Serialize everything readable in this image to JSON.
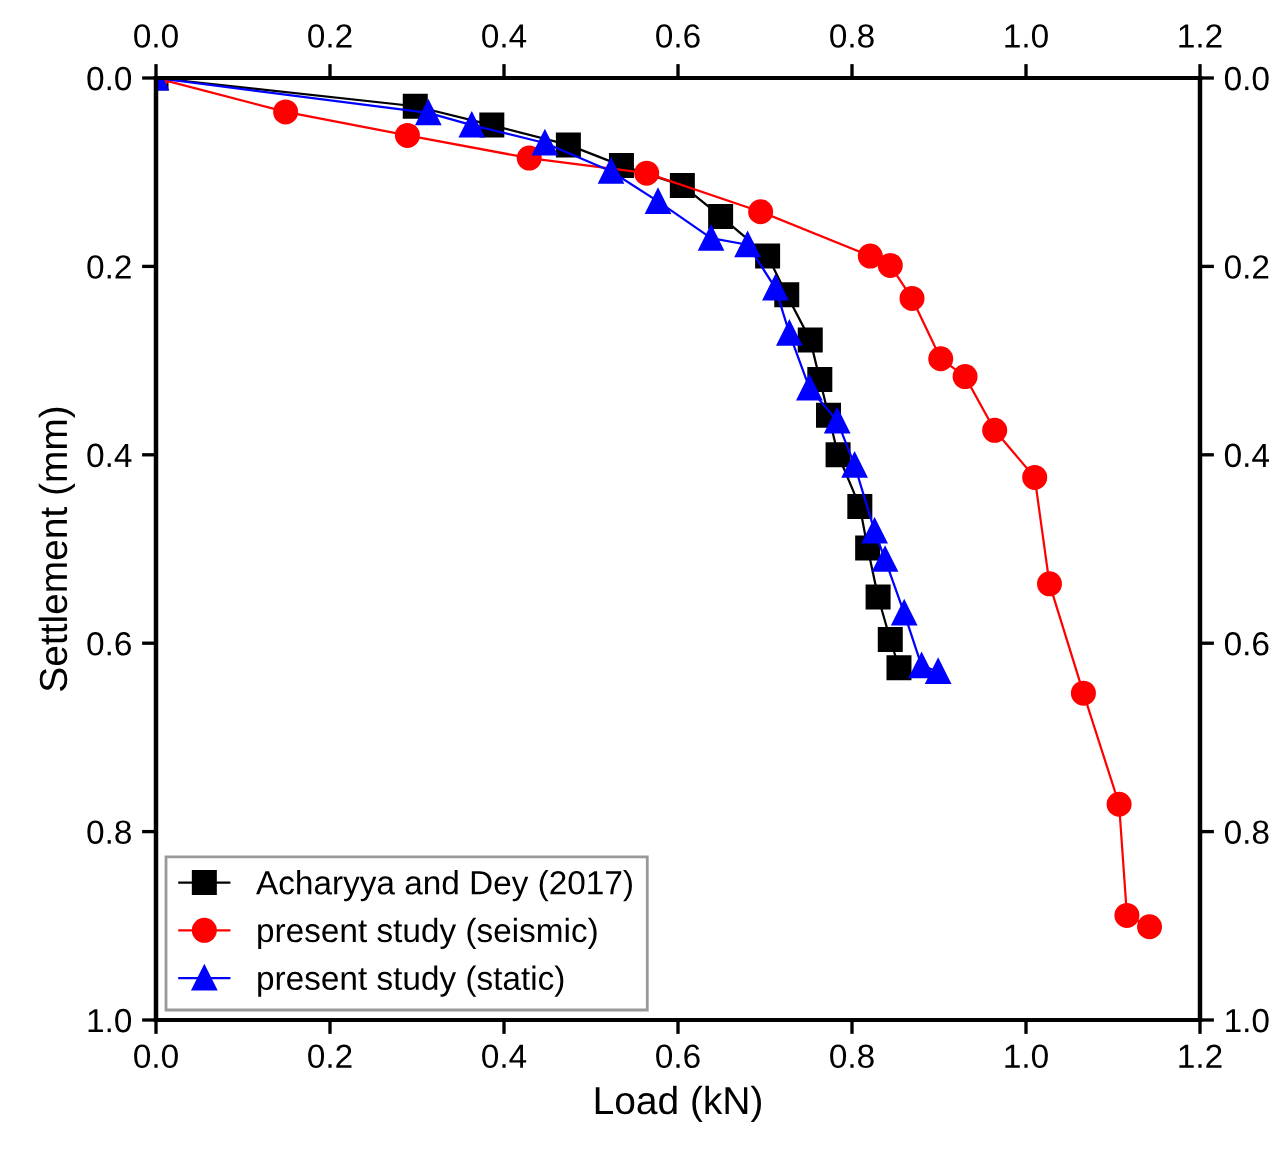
{
  "chart_data": {
    "type": "line",
    "xlabel": "Load (kN)",
    "ylabel": "Settlement (mm)",
    "legend": "bottom left",
    "grid": false,
    "line_style": "solid",
    "xlim": [
      0,
      1.2
    ],
    "ylim": [
      1.0,
      0.0
    ],
    "x2lim": [
      0,
      1.2
    ],
    "y2lim": [
      1.0,
      0.0
    ],
    "xticks": [
      {
        "value": 0,
        "label": "0.0"
      },
      {
        "value": 0.2,
        "label": "0.2"
      },
      {
        "value": 0.4,
        "label": "0.4"
      },
      {
        "value": 0.6,
        "label": "0.6"
      },
      {
        "value": 0.8,
        "label": "0.8"
      },
      {
        "value": 1.0,
        "label": "1.0"
      },
      {
        "value": 1.2,
        "label": "1.2"
      }
    ],
    "x2ticks": [
      {
        "value": 0,
        "label": "0.0"
      },
      {
        "value": 0.2,
        "label": "0.2"
      },
      {
        "value": 0.4,
        "label": "0.4"
      },
      {
        "value": 0.6,
        "label": "0.6"
      },
      {
        "value": 0.8,
        "label": "0.8"
      },
      {
        "value": 1.0,
        "label": "1.0"
      },
      {
        "value": 1.2,
        "label": "1.2"
      }
    ],
    "yticks": [
      {
        "value": 0,
        "label": "0.0"
      },
      {
        "value": 0.2,
        "label": "0.2"
      },
      {
        "value": 0.4,
        "label": "0.4"
      },
      {
        "value": 0.6,
        "label": "0.6"
      },
      {
        "value": 0.8,
        "label": "0.8"
      },
      {
        "value": 1.0,
        "label": "1.0"
      }
    ],
    "y2ticks": [
      {
        "value": 0,
        "label": "0.0"
      },
      {
        "value": 0.2,
        "label": "0.2"
      },
      {
        "value": 0.4,
        "label": "0.4"
      },
      {
        "value": 0.6,
        "label": "0.6"
      },
      {
        "value": 0.8,
        "label": "0.8"
      },
      {
        "value": 1.0,
        "label": "1.0"
      }
    ],
    "series": [
      {
        "name": "Acharyya and Dey (2017)",
        "color": "#000000",
        "marker": "square",
        "x": [
          0,
          0.298,
          0.386,
          0.474,
          0.535,
          0.605,
          0.649,
          0.703,
          0.725,
          0.752,
          0.763,
          0.773,
          0.784,
          0.809,
          0.818,
          0.83,
          0.844,
          0.854
        ],
        "values": [
          0,
          0.03,
          0.05,
          0.071,
          0.093,
          0.114,
          0.147,
          0.189,
          0.23,
          0.278,
          0.32,
          0.358,
          0.4,
          0.455,
          0.499,
          0.551,
          0.596,
          0.626
        ]
      },
      {
        "name": "present study (seismic)",
        "color": "#ff0000",
        "marker": "circle",
        "x": [
          0,
          0.149,
          0.289,
          0.429,
          0.564,
          0.695,
          0.821,
          0.844,
          0.869,
          0.902,
          0.93,
          0.964,
          1.01,
          1.027,
          1.066,
          1.107,
          1.116,
          1.142
        ],
        "values": [
          0,
          0.036,
          0.061,
          0.085,
          0.101,
          0.142,
          0.189,
          0.199,
          0.234,
          0.298,
          0.317,
          0.374,
          0.424,
          0.537,
          0.653,
          0.771,
          0.889,
          0.901
        ]
      },
      {
        "name": "present study (static)",
        "color": "#0000ff",
        "marker": "triangle",
        "x": [
          0,
          0.313,
          0.363,
          0.447,
          0.523,
          0.577,
          0.638,
          0.68,
          0.712,
          0.728,
          0.751,
          0.783,
          0.803,
          0.826,
          0.838,
          0.86,
          0.88,
          0.899
        ],
        "values": [
          0,
          0.037,
          0.05,
          0.069,
          0.099,
          0.131,
          0.17,
          0.177,
          0.223,
          0.271,
          0.329,
          0.364,
          0.411,
          0.481,
          0.511,
          0.568,
          0.624,
          0.63
        ]
      }
    ]
  }
}
